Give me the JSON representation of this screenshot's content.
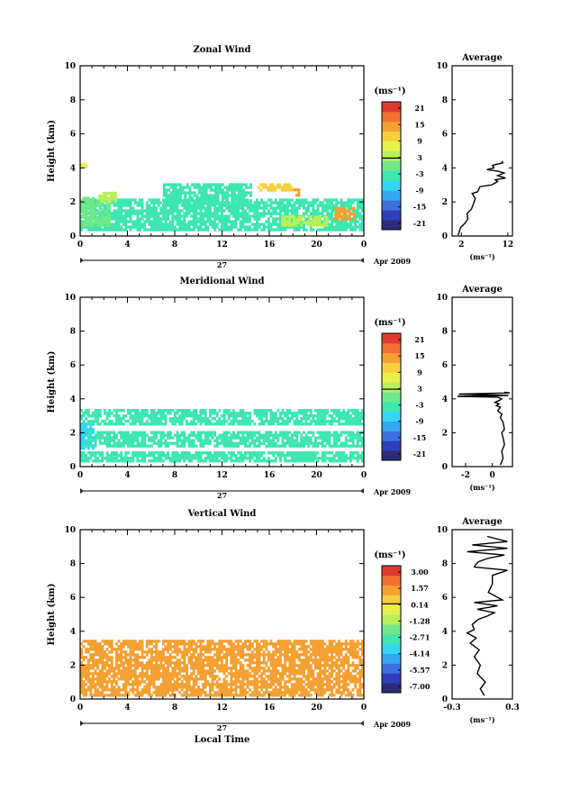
{
  "colors": {
    "palette": [
      "#2b2b7a",
      "#2e3fb8",
      "#3d6fe0",
      "#33a8f0",
      "#33d6f5",
      "#3ee6b0",
      "#6fe88a",
      "#b8ef5a",
      "#e8f04a",
      "#f5d03c",
      "#f5a033",
      "#f07030",
      "#e03a30"
    ]
  },
  "shared": {
    "x_ticks": [
      "0",
      "4",
      "8",
      "12",
      "16",
      "20",
      "0"
    ],
    "day_label": "27",
    "month_label": "Apr 2009",
    "y_ticks": [
      "0",
      "2",
      "4",
      "6",
      "8",
      "10"
    ],
    "ylabel": "Height (km)",
    "unit_label": "(ms⁻¹)",
    "xlabel": "Local Time"
  },
  "panels": [
    {
      "title": "Zonal Wind",
      "colorbar_ticks": [
        "21",
        "15",
        "9",
        "3",
        "-3",
        "-9",
        "-15",
        "-21"
      ],
      "avg_title": "Average",
      "avg_xticks": [
        "2",
        "12"
      ],
      "avg_unit": "(ms⁻¹)"
    },
    {
      "title": "Meridional Wind",
      "colorbar_ticks": [
        "21",
        "15",
        "9",
        "3",
        "-3",
        "-9",
        "-15",
        "-21"
      ],
      "avg_title": "Average",
      "avg_xticks": [
        "-2",
        "0"
      ],
      "avg_unit": "(ms⁻¹)"
    },
    {
      "title": "Vertical Wind",
      "colorbar_ticks": [
        "3.00",
        "1.57",
        "0.14",
        "-1.28",
        "-2.71",
        "-4.14",
        "-5.57",
        "-7.00"
      ],
      "avg_title": "Average",
      "avg_xticks": [
        "-0.3",
        "0.3"
      ],
      "avg_unit": "(ms⁻¹)"
    }
  ],
  "chart_data": [
    {
      "type": "heatmap",
      "title": "Zonal Wind",
      "x_range_hours": [
        0,
        24
      ],
      "ylim": [
        0,
        10
      ],
      "colorbar_range": [
        -24,
        24
      ],
      "regions": [
        {
          "x0": 0.0,
          "x1": 24.0,
          "y0": 0.3,
          "y1": 2.2,
          "value": -4
        },
        {
          "x0": 0.0,
          "x1": 2.5,
          "y0": 0.6,
          "y1": 2.3,
          "value": 1
        },
        {
          "x0": 1.5,
          "x1": 3.0,
          "y0": 2.0,
          "y1": 2.6,
          "value": 5
        },
        {
          "x0": 0.0,
          "x1": 0.5,
          "y0": 3.8,
          "y1": 4.3,
          "value": 6
        },
        {
          "x0": 7.0,
          "x1": 14.5,
          "y0": 1.9,
          "y1": 3.1,
          "value": -4
        },
        {
          "x0": 15.0,
          "x1": 18.0,
          "y0": 2.6,
          "y1": 3.1,
          "value": 12
        },
        {
          "x0": 18.0,
          "x1": 18.6,
          "y0": 2.3,
          "y1": 2.8,
          "value": 13
        },
        {
          "x0": 17.0,
          "x1": 21.0,
          "y0": 0.5,
          "y1": 1.2,
          "value": 5
        },
        {
          "x0": 21.5,
          "x1": 23.2,
          "y0": 0.9,
          "y1": 1.7,
          "value": 13
        }
      ]
    },
    {
      "type": "heatmap",
      "title": "Meridional Wind",
      "x_range_hours": [
        0,
        24
      ],
      "ylim": [
        0,
        10
      ],
      "colorbar_range": [
        -24,
        24
      ],
      "regions": [
        {
          "x0": 0.0,
          "x1": 24.0,
          "y0": 0.2,
          "y1": 0.9,
          "value": -4
        },
        {
          "x0": 0.0,
          "x1": 24.0,
          "y0": 1.2,
          "y1": 2.1,
          "value": -4
        },
        {
          "x0": 0.0,
          "x1": 24.0,
          "y0": 2.4,
          "y1": 3.4,
          "value": -4
        },
        {
          "x0": 0.0,
          "x1": 1.2,
          "y0": 1.0,
          "y1": 2.6,
          "value": -7
        }
      ]
    },
    {
      "type": "heatmap",
      "title": "Vertical Wind",
      "x_range_hours": [
        0,
        24
      ],
      "ylim": [
        0,
        10
      ],
      "colorbar_range": [
        -7.0,
        3.0
      ],
      "regions": [
        {
          "x0": 0.0,
          "x1": 24.0,
          "y0": 0.2,
          "y1": 3.5,
          "value": 0.8
        }
      ]
    },
    {
      "type": "line",
      "title": "Average",
      "xlabel": "(ms⁻¹)",
      "ylabel": "Height (km)",
      "xlim": [
        0,
        13
      ],
      "ylim": [
        0,
        10
      ],
      "x": [
        1.3,
        1.6,
        1.8,
        2.6,
        3.4,
        3.2,
        4.2,
        4.6,
        5.0,
        4.3,
        5.5,
        6.0,
        8.5,
        9.8,
        9.3,
        11.5,
        9.8,
        11.2,
        10.0,
        7.5,
        9.0,
        8.7,
        10.9,
        10.8
      ],
      "y": [
        0.05,
        0.3,
        0.5,
        0.7,
        1.0,
        1.3,
        1.6,
        1.9,
        2.2,
        2.5,
        2.6,
        2.9,
        3.0,
        3.2,
        3.3,
        3.4,
        3.55,
        3.7,
        3.8,
        3.9,
        4.0,
        4.15,
        4.3,
        4.4
      ]
    },
    {
      "type": "line",
      "title": "Average",
      "xlabel": "(ms⁻¹)",
      "ylabel": "Height (km)",
      "xlim": [
        -3,
        1.5
      ],
      "ylim": [
        0,
        10
      ],
      "x": [
        0.6,
        0.8,
        0.7,
        0.9,
        0.8,
        0.7,
        0.9,
        0.8,
        0.6,
        0.7,
        0.4,
        0.6,
        0.3,
        0.5,
        0.2,
        0.5,
        0.7,
        0.4,
        -2.6,
        1.2,
        -2.5,
        1.3,
        0.9
      ],
      "y": [
        0.1,
        0.5,
        0.9,
        1.3,
        1.7,
        2.0,
        2.2,
        2.6,
        2.9,
        3.1,
        3.3,
        3.5,
        3.6,
        3.7,
        3.8,
        3.9,
        4.0,
        4.1,
        4.15,
        4.2,
        4.28,
        4.35,
        4.4
      ]
    },
    {
      "type": "line",
      "title": "Average",
      "xlabel": "(ms⁻¹)",
      "ylabel": "Height (km)",
      "xlim": [
        -0.3,
        0.3
      ],
      "ylim": [
        0,
        10
      ],
      "x": [
        0.02,
        -0.02,
        0.03,
        -0.05,
        -0.02,
        -0.08,
        -0.03,
        -0.12,
        -0.06,
        -0.15,
        -0.08,
        -0.1,
        -0.04,
        0.05,
        0.12,
        -0.05,
        0.15,
        -0.08,
        0.2,
        0.06,
        0.1,
        0.1,
        0.25,
        -0.08,
        -0.07,
        -0.04,
        0.05,
        0.22,
        -0.15,
        0.25,
        -0.1,
        0.25,
        0.05
      ],
      "y": [
        0.2,
        0.6,
        1.0,
        1.5,
        2.0,
        2.5,
        2.9,
        3.3,
        3.6,
        3.9,
        4.1,
        4.4,
        4.7,
        4.9,
        5.1,
        5.3,
        5.5,
        5.7,
        5.85,
        6.3,
        6.8,
        7.3,
        7.6,
        7.8,
        7.9,
        8.1,
        8.3,
        8.5,
        8.7,
        8.9,
        9.1,
        9.3,
        9.6
      ]
    }
  ]
}
